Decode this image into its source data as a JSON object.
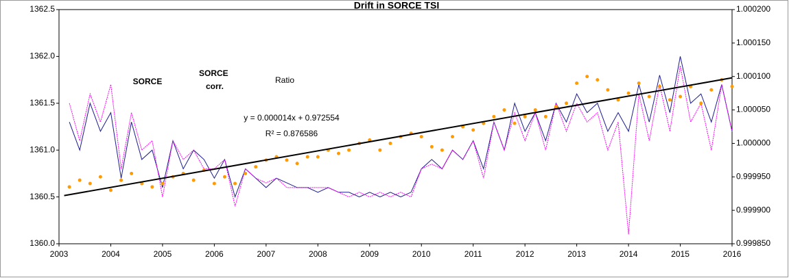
{
  "chart_data": {
    "type": "line",
    "title": "Drift in SORCE TSI",
    "x": [
      2003.2,
      2003.4,
      2003.6,
      2003.8,
      2004.0,
      2004.2,
      2004.4,
      2004.6,
      2004.8,
      2005.0,
      2005.2,
      2005.4,
      2005.6,
      2005.8,
      2006.0,
      2006.2,
      2006.4,
      2006.6,
      2006.8,
      2007.0,
      2007.2,
      2007.4,
      2007.6,
      2007.8,
      2008.0,
      2008.2,
      2008.4,
      2008.6,
      2008.8,
      2009.0,
      2009.2,
      2009.4,
      2009.6,
      2009.8,
      2010.0,
      2010.2,
      2010.4,
      2010.6,
      2010.8,
      2011.0,
      2011.2,
      2011.4,
      2011.6,
      2011.8,
      2012.0,
      2012.2,
      2012.4,
      2012.6,
      2012.8,
      2013.0,
      2013.2,
      2013.4,
      2013.6,
      2013.8,
      2014.0,
      2014.2,
      2014.4,
      2014.6,
      2014.8,
      2015.0,
      2015.2,
      2015.4,
      2015.6,
      2015.8,
      2016.0
    ],
    "series": [
      {
        "name": "SORCE",
        "color": "#1c1c8f",
        "values": [
          1361.3,
          1361.0,
          1361.5,
          1361.2,
          1361.4,
          1360.7,
          1361.3,
          1360.9,
          1361.0,
          1360.6,
          1361.1,
          1360.8,
          1361.0,
          1360.9,
          1360.7,
          1360.9,
          1360.5,
          1360.8,
          1360.7,
          1360.6,
          1360.7,
          1360.65,
          1360.6,
          1360.6,
          1360.55,
          1360.6,
          1360.55,
          1360.55,
          1360.5,
          1360.55,
          1360.5,
          1360.55,
          1360.5,
          1360.55,
          1360.8,
          1360.9,
          1360.8,
          1361.0,
          1360.9,
          1361.1,
          1360.8,
          1361.3,
          1361.0,
          1361.5,
          1361.2,
          1361.4,
          1361.1,
          1361.5,
          1361.3,
          1361.6,
          1361.4,
          1361.5,
          1361.2,
          1361.4,
          1361.2,
          1361.7,
          1361.3,
          1361.8,
          1361.4,
          1362.0,
          1361.5,
          1361.6,
          1361.3,
          1361.7,
          1361.2
        ]
      },
      {
        "name": "SORCE corr.",
        "color": "#ff00ff",
        "values": [
          1361.5,
          1361.1,
          1361.6,
          1361.3,
          1361.7,
          1360.8,
          1361.4,
          1361.0,
          1361.1,
          1360.5,
          1361.1,
          1360.9,
          1361.0,
          1360.8,
          1360.8,
          1360.9,
          1360.4,
          1360.8,
          1360.7,
          1360.65,
          1360.7,
          1360.6,
          1360.6,
          1360.6,
          1360.6,
          1360.6,
          1360.55,
          1360.5,
          1360.55,
          1360.5,
          1360.55,
          1360.5,
          1360.55,
          1360.5,
          1360.8,
          1360.85,
          1360.8,
          1361.0,
          1360.9,
          1361.1,
          1360.7,
          1361.3,
          1361.0,
          1361.4,
          1361.1,
          1361.4,
          1361.0,
          1361.5,
          1361.2,
          1361.5,
          1361.3,
          1361.4,
          1361.0,
          1361.3,
          1360.1,
          1361.6,
          1361.1,
          1361.7,
          1361.2,
          1361.9,
          1361.3,
          1361.5,
          1361.0,
          1361.7,
          1361.2
        ]
      },
      {
        "name": "Ratio",
        "color": "#ff9a00",
        "axis": "y2",
        "values": [
          0.999935,
          0.999945,
          0.99994,
          0.99995,
          0.99993,
          0.999945,
          0.999955,
          0.99994,
          0.999935,
          0.99994,
          0.99995,
          0.999955,
          0.999945,
          0.99996,
          0.99994,
          0.99995,
          0.99994,
          0.999955,
          0.999965,
          0.999975,
          0.99998,
          0.999975,
          0.99997,
          0.99998,
          0.99998,
          0.99999,
          0.999985,
          0.99999,
          1.0,
          1.000005,
          0.99999,
          1.0,
          1.00001,
          1.000015,
          1.00001,
          0.999995,
          0.99999,
          1.00001,
          1.000025,
          1.00002,
          1.00003,
          1.00004,
          1.00005,
          1.00003,
          1.00004,
          1.00005,
          1.00004,
          1.000055,
          1.00006,
          1.00009,
          1.0001,
          1.000095,
          1.00008,
          1.000065,
          1.000075,
          1.00009,
          1.00007,
          1.000085,
          1.000065,
          1.00007,
          1.000085,
          1.00006,
          1.00008,
          1.000095,
          1.000085
        ]
      }
    ],
    "trendline": {
      "x": [
        2003.1,
        2016.0
      ],
      "values": [
        0.999922,
        1.000098
      ],
      "color": "#000000"
    },
    "annotations": [
      "y = 0.000014x + 0.972554",
      "R² = 0.876586"
    ],
    "xlim": [
      2003,
      2016
    ],
    "xticks": [
      2003,
      2004,
      2005,
      2006,
      2007,
      2008,
      2009,
      2010,
      2011,
      2012,
      2013,
      2014,
      2015,
      2016
    ],
    "ylim": [
      1360.0,
      1362.5
    ],
    "yticks": [
      {
        "value": 1360.0,
        "label": "1360.0"
      },
      1360.5,
      {
        "value": 1361.0,
        "label": "1361.0"
      },
      1361.5,
      {
        "value": 1362.0,
        "label": "1362.0"
      },
      1362.5
    ],
    "y2lim": [
      0.99985,
      1.0002
    ],
    "y2ticks": [
      {
        "value": 0.99985,
        "label": "0.999850"
      },
      {
        "value": 0.9999,
        "label": "0.999900"
      },
      {
        "value": 0.99995,
        "label": "0.999950"
      },
      {
        "value": 1.0,
        "label": "1.000000"
      },
      {
        "value": 1.00005,
        "label": "1.000050"
      },
      {
        "value": 1.0001,
        "label": "1.000100"
      },
      {
        "value": 1.00015,
        "label": "1.000150"
      },
      {
        "value": 1.0002,
        "label": "1.000200"
      }
    ]
  }
}
